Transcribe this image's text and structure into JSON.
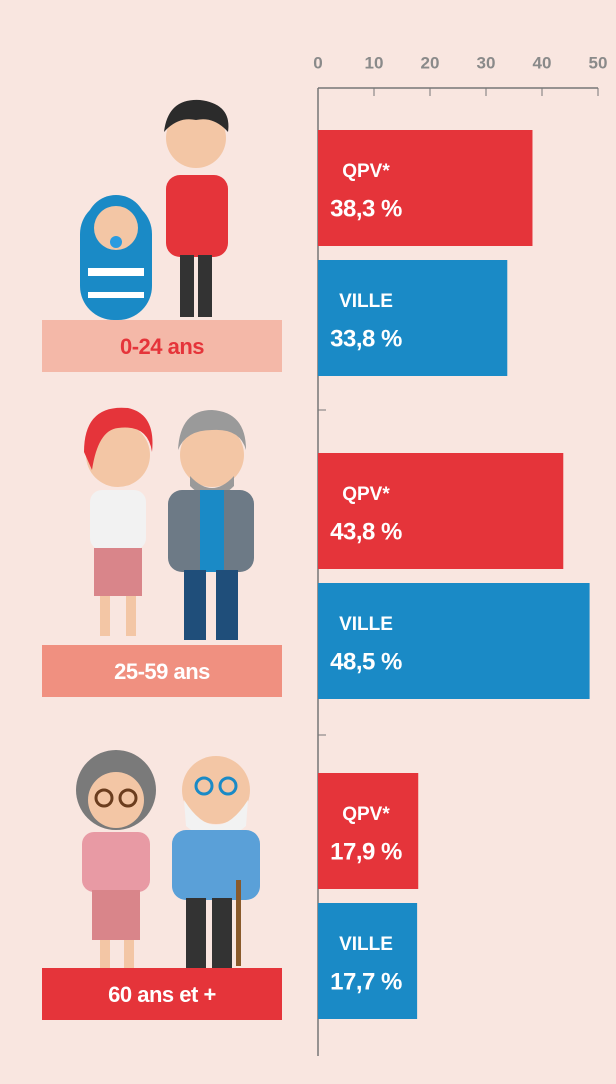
{
  "chart_data": {
    "type": "bar",
    "orientation": "horizontal",
    "categories": [
      "0-24 ans",
      "25-59 ans",
      "60 ans et +"
    ],
    "series": [
      {
        "name": "QPV*",
        "color": "#e5343a",
        "values": [
          38.3,
          43.8,
          17.9
        ],
        "value_labels": [
          "38,3 %",
          "43,8 %",
          "17,9 %"
        ]
      },
      {
        "name": "VILLE",
        "color": "#1a8ac6",
        "values": [
          33.8,
          48.5,
          17.7
        ],
        "value_labels": [
          "33,8 %",
          "48,5 %",
          "17,7 %"
        ]
      }
    ],
    "xlim": [
      0,
      50
    ],
    "xticks": [
      0,
      10,
      20,
      30,
      40,
      50
    ],
    "grid": false
  }
}
